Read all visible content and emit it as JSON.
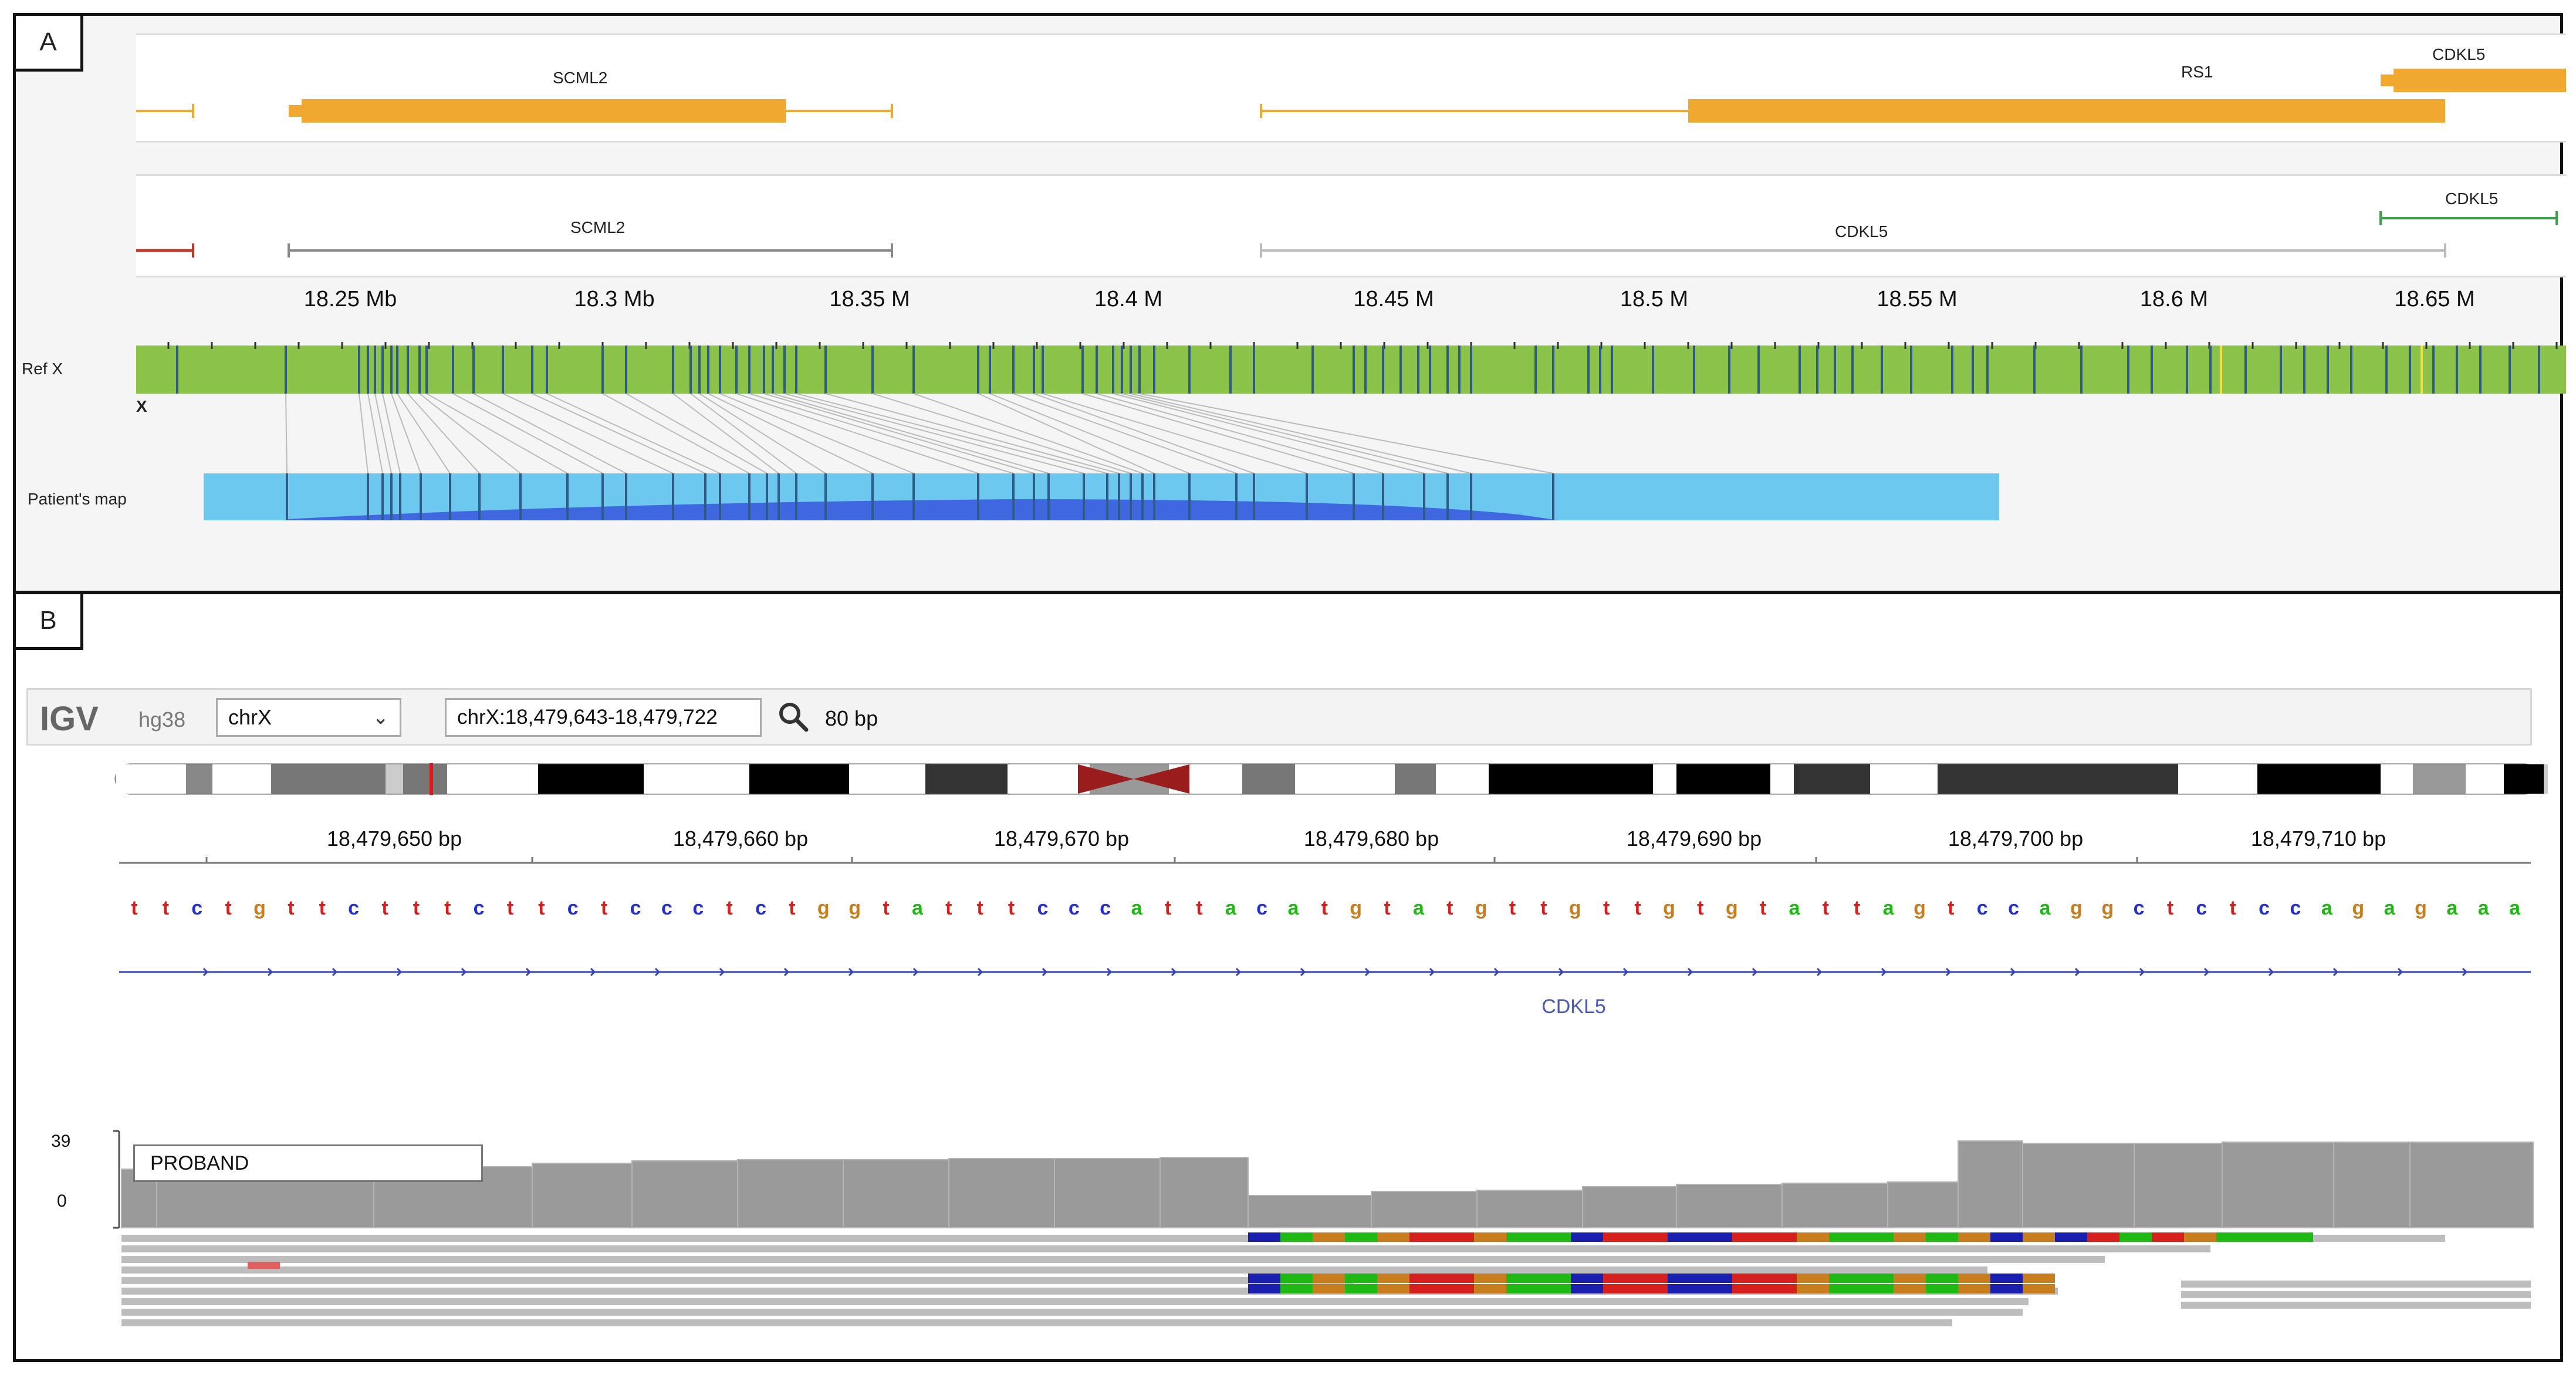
{
  "panel_a": {
    "letter": "A",
    "refseq_genes": [
      {
        "name": "SCML2",
        "strand_line": [
          1.0,
          1.0
        ]
      },
      {
        "name": "RS1"
      },
      {
        "name": "CDKL5"
      }
    ],
    "labels": {
      "scml2_top": "SCML2",
      "rs1_top": "RS1",
      "cdkl5_top": "CDKL5",
      "scml2_mid": "SCML2",
      "cdkl5_mid": "CDKL5",
      "cdkl5_mid_right": "CDKL5"
    },
    "scale": [
      "18.25 Mb",
      "18.3 Mb",
      "18.35 M",
      "18.4 M",
      "18.45 M",
      "18.5 M",
      "18.55 M",
      "18.6 M",
      "18.65 M"
    ],
    "ref_label": "Ref X",
    "chrom_label": "X",
    "patient_label": "Patient's map",
    "colors": {
      "ref_map": "#8bc34a",
      "patient_map": "#6cc8ee",
      "patient_dark": "#3f67e0",
      "gene": "#f0a830",
      "mark": "#2f5b87"
    }
  },
  "panel_b": {
    "letter": "B",
    "igv": {
      "logo": "IGV",
      "genome": "hg38",
      "chromosome": "chrX",
      "locus": "chrX:18,479,643-18,479,722",
      "width": "80 bp",
      "search_icon": "search-icon",
      "dropdown_icon": "chevron-down-icon"
    },
    "ruler": [
      "18,479,650 bp",
      "18,479,660 bp",
      "18,479,670 bp",
      "18,479,680 bp",
      "18,479,690 bp",
      "18,479,700 bp",
      "18,479,710 bp"
    ],
    "sequence": "ttctgttctttcttctccctctggtatttcccattacatgtatgttgttgtgtattagtccaggctctccagagaaa",
    "gene_name": "CDKL5",
    "coverage": {
      "max_label": "39",
      "min_label": "0",
      "sample": "PROBAND"
    },
    "base_colors": {
      "a": "#1fb814",
      "c": "#2430d0",
      "g": "#c87e1e",
      "t": "#d6201e"
    }
  }
}
